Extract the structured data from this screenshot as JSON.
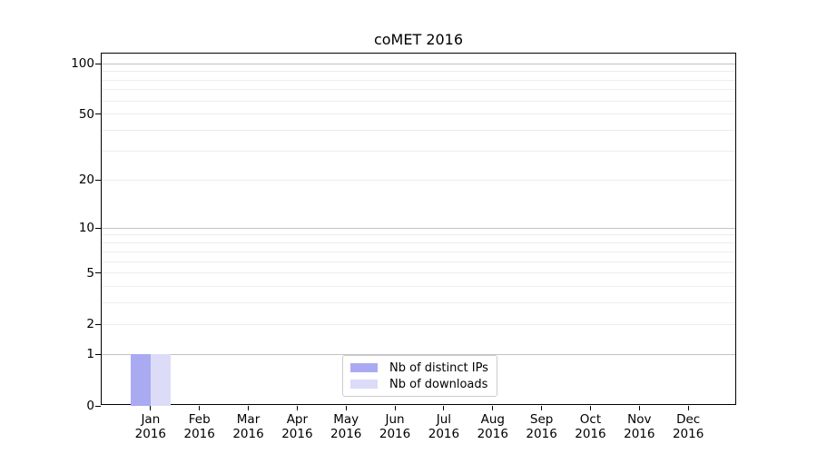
{
  "figure": {
    "background": "#ffffff"
  },
  "chart_data": {
    "type": "bar",
    "title": "coMET 2016",
    "categories": [
      "Jan 2016",
      "Feb 2016",
      "Mar 2016",
      "Apr 2016",
      "May 2016",
      "Jun 2016",
      "Jul 2016",
      "Aug 2016",
      "Sep 2016",
      "Oct 2016",
      "Nov 2016",
      "Dec 2016"
    ],
    "series": [
      {
        "name": "Nb of distinct IPs",
        "color": "#aaaaf2",
        "values": [
          1,
          0,
          0,
          0,
          0,
          0,
          0,
          0,
          0,
          0,
          0,
          0
        ]
      },
      {
        "name": "Nb of downloads",
        "color": "#dcdcf8",
        "values": [
          1,
          0,
          0,
          0,
          0,
          0,
          0,
          0,
          0,
          0,
          0,
          0
        ]
      }
    ],
    "xlabel": "",
    "ylabel": "",
    "yscale": "log1p",
    "ylim": [
      0,
      115
    ],
    "yticks": [
      0,
      1,
      2,
      5,
      10,
      20,
      50,
      100
    ],
    "gridlines": {
      "major": [
        1,
        10,
        100
      ],
      "minor": [
        2,
        3,
        4,
        5,
        6,
        7,
        8,
        9,
        20,
        30,
        40,
        50,
        60,
        70,
        80,
        90
      ]
    },
    "grid": true,
    "legend": {
      "position": "inside-bottom-center",
      "entries": [
        "Nb of distinct IPs",
        "Nb of downloads"
      ]
    }
  },
  "style": {
    "axis_color": "#000000",
    "major_grid_color": "#c3c3c3",
    "minor_grid_color": "#ededed",
    "legend_border_color": "#cccccc",
    "text_color": "#000000"
  }
}
